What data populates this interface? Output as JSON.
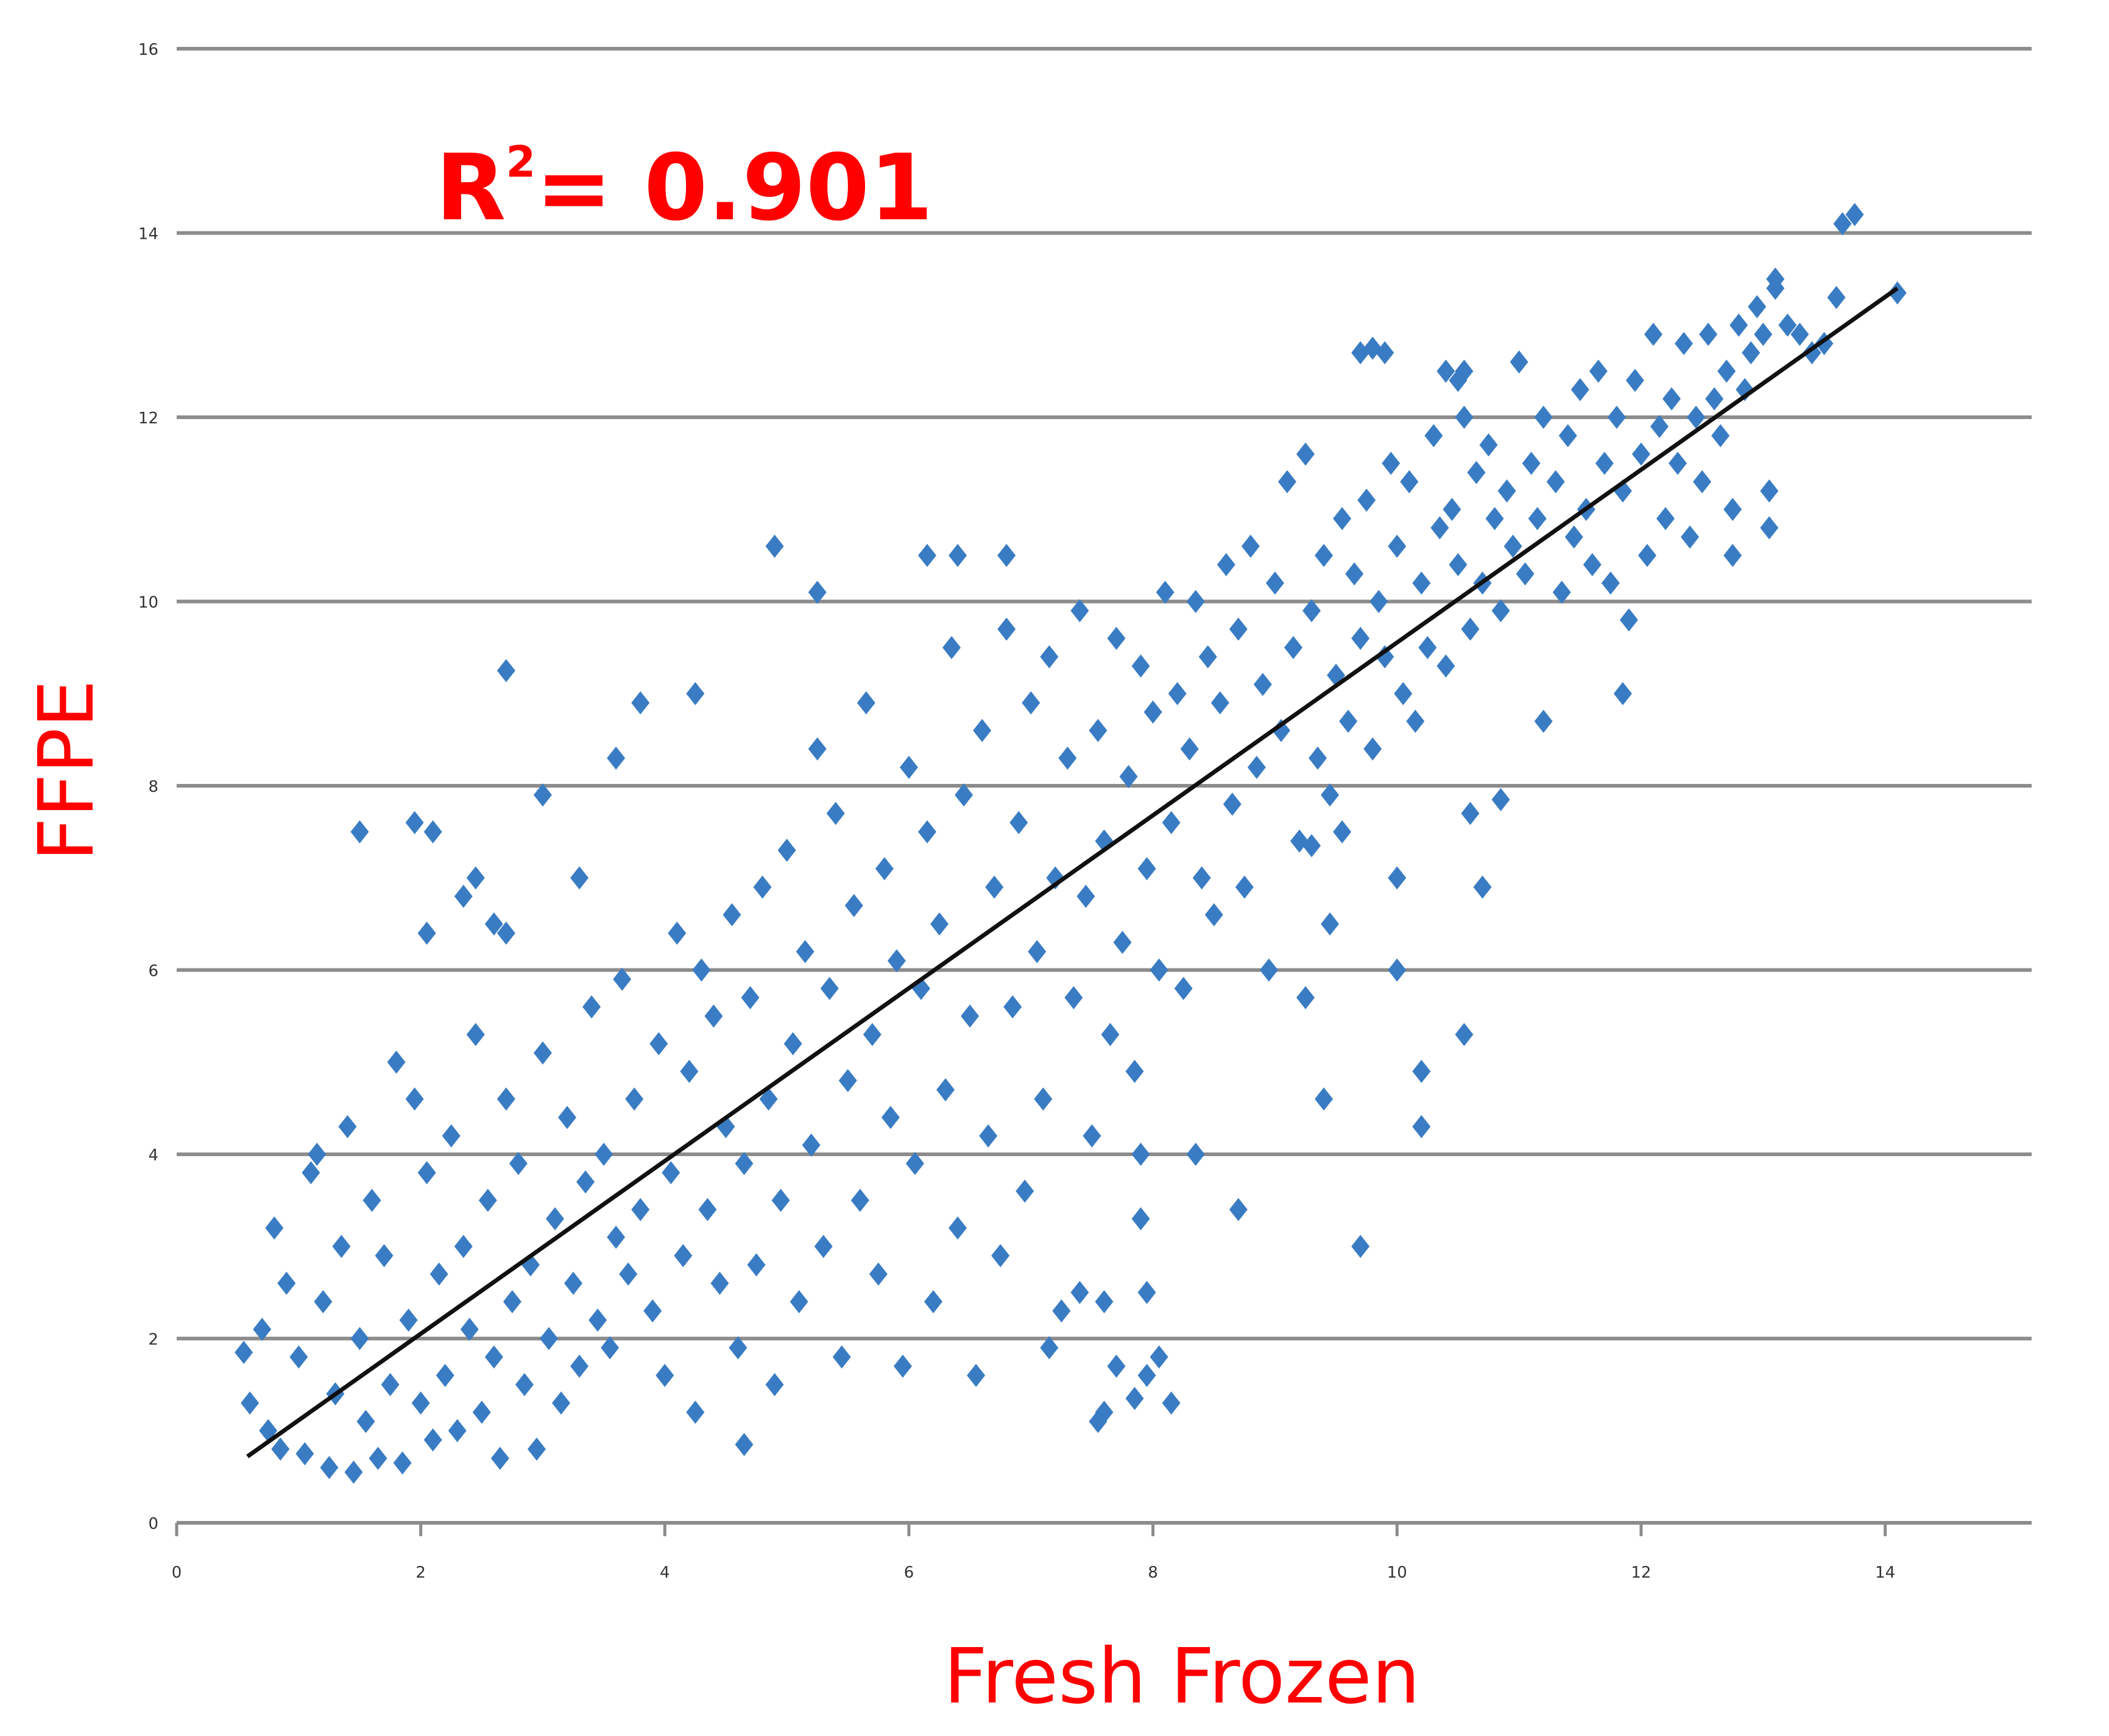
{
  "chart_data": {
    "type": "scatter",
    "xlabel": "Fresh Frozen",
    "ylabel": "FFPE",
    "annotation": {
      "base": "R",
      "sup": "2",
      "rest": "= 0.901"
    },
    "xlim": [
      0,
      15.2
    ],
    "ylim": [
      0,
      16
    ],
    "x_ticks": [
      "0",
      "2",
      "4",
      "6",
      "8",
      "10",
      "12",
      "14"
    ],
    "y_ticks": [
      "0",
      "2",
      "4",
      "6",
      "8",
      "10",
      "12",
      "14",
      "16"
    ],
    "grid": "horizontal",
    "colors": {
      "points": "#3a7cc3",
      "trendline": "#111111",
      "grid": "#8c8c8c",
      "labels": "#ff0000"
    },
    "trendline": {
      "x": [
        0.58,
        14.1
      ],
      "y": [
        0.72,
        13.4
      ]
    },
    "series": [
      {
        "marker": "diamond",
        "points": [
          [
            4.9,
            10.6
          ],
          [
            5.25,
            10.1
          ],
          [
            6.15,
            10.5
          ],
          [
            6.4,
            10.5
          ],
          [
            6.8,
            10.5
          ],
          [
            2.7,
            9.25
          ],
          [
            3.8,
            8.9
          ],
          [
            4.25,
            9.0
          ],
          [
            1.5,
            7.5
          ],
          [
            1.95,
            7.6
          ],
          [
            2.1,
            7.5
          ],
          [
            2.05,
            6.4
          ],
          [
            2.35,
            6.8
          ],
          [
            2.45,
            7.0
          ],
          [
            2.6,
            6.5
          ],
          [
            2.7,
            6.4
          ],
          [
            3.0,
            7.9
          ],
          [
            3.3,
            7.0
          ],
          [
            3.6,
            8.3
          ],
          [
            7.6,
            1.2
          ],
          [
            7.7,
            1.7
          ],
          [
            7.85,
            1.35
          ],
          [
            7.95,
            1.6
          ],
          [
            8.05,
            1.8
          ],
          [
            8.15,
            1.3
          ],
          [
            7.55,
            1.1
          ],
          [
            7.4,
            2.5
          ],
          [
            7.6,
            2.4
          ],
          [
            7.95,
            2.5
          ],
          [
            7.15,
            1.9
          ],
          [
            8.7,
            3.4
          ],
          [
            9.7,
            3.0
          ],
          [
            10.2,
            4.3
          ],
          [
            10.2,
            4.9
          ],
          [
            10.55,
            5.3
          ],
          [
            9.4,
            4.6
          ],
          [
            8.35,
            4.0
          ],
          [
            7.9,
            3.3
          ],
          [
            7.9,
            4.0
          ],
          [
            4.65,
            0.85
          ],
          [
            9.7,
            12.7
          ],
          [
            9.8,
            12.75
          ],
          [
            9.9,
            12.7
          ],
          [
            10.4,
            12.5
          ],
          [
            10.5,
            12.4
          ],
          [
            10.55,
            12.5
          ],
          [
            13.65,
            14.1
          ],
          [
            13.75,
            14.2
          ],
          [
            14.1,
            13.35
          ],
          [
            13.6,
            13.3
          ],
          [
            13.1,
            13.5
          ],
          [
            13.05,
            10.8
          ],
          [
            12.75,
            10.5
          ],
          [
            11.85,
            9.0
          ],
          [
            11.2,
            8.7
          ],
          [
            10.6,
            7.7
          ],
          [
            10.85,
            7.85
          ],
          [
            10.7,
            6.9
          ],
          [
            10.0,
            7.0
          ],
          [
            9.55,
            7.5
          ],
          [
            10.0,
            6.0
          ],
          [
            9.25,
            5.7
          ],
          [
            9.45,
            6.5
          ],
          [
            9.3,
            7.35
          ],
          [
            0.55,
            1.85
          ],
          [
            0.6,
            1.3
          ],
          [
            0.7,
            2.1
          ],
          [
            0.75,
            1.0
          ],
          [
            0.8,
            3.2
          ],
          [
            0.85,
            0.8
          ],
          [
            0.9,
            2.6
          ],
          [
            1.0,
            1.8
          ],
          [
            1.05,
            0.75
          ],
          [
            1.1,
            3.8
          ],
          [
            1.15,
            4.0
          ],
          [
            1.2,
            2.4
          ],
          [
            1.25,
            0.6
          ],
          [
            1.3,
            1.4
          ],
          [
            1.35,
            3.0
          ],
          [
            1.4,
            4.3
          ],
          [
            1.45,
            0.55
          ],
          [
            1.5,
            2.0
          ],
          [
            1.55,
            1.1
          ],
          [
            1.6,
            3.5
          ],
          [
            1.65,
            0.7
          ],
          [
            1.7,
            2.9
          ],
          [
            1.75,
            1.5
          ],
          [
            1.8,
            5.0
          ],
          [
            1.85,
            0.65
          ],
          [
            1.9,
            2.2
          ],
          [
            1.95,
            4.6
          ],
          [
            2.0,
            1.3
          ],
          [
            2.05,
            3.8
          ],
          [
            2.1,
            0.9
          ],
          [
            2.15,
            2.7
          ],
          [
            2.2,
            1.6
          ],
          [
            2.25,
            4.2
          ],
          [
            2.3,
            1.0
          ],
          [
            2.35,
            3.0
          ],
          [
            2.4,
            2.1
          ],
          [
            2.45,
            5.3
          ],
          [
            2.5,
            1.2
          ],
          [
            2.55,
            3.5
          ],
          [
            2.6,
            1.8
          ],
          [
            2.65,
            0.7
          ],
          [
            2.7,
            4.6
          ],
          [
            2.75,
            2.4
          ],
          [
            2.8,
            3.9
          ],
          [
            2.85,
            1.5
          ],
          [
            2.9,
            2.8
          ],
          [
            2.95,
            0.8
          ],
          [
            3.0,
            5.1
          ],
          [
            3.05,
            2.0
          ],
          [
            3.1,
            3.3
          ],
          [
            3.15,
            1.3
          ],
          [
            3.2,
            4.4
          ],
          [
            3.25,
            2.6
          ],
          [
            3.3,
            1.7
          ],
          [
            3.35,
            3.7
          ],
          [
            3.4,
            5.6
          ],
          [
            3.45,
            2.2
          ],
          [
            3.5,
            4.0
          ],
          [
            3.55,
            1.9
          ],
          [
            3.6,
            3.1
          ],
          [
            3.65,
            5.9
          ],
          [
            3.7,
            2.7
          ],
          [
            3.75,
            4.6
          ],
          [
            3.8,
            3.4
          ],
          [
            3.9,
            2.3
          ],
          [
            3.95,
            5.2
          ],
          [
            4.0,
            1.6
          ],
          [
            4.05,
            3.8
          ],
          [
            4.1,
            6.4
          ],
          [
            4.15,
            2.9
          ],
          [
            4.2,
            4.9
          ],
          [
            4.25,
            1.2
          ],
          [
            4.3,
            6.0
          ],
          [
            4.35,
            3.4
          ],
          [
            4.4,
            5.5
          ],
          [
            4.45,
            2.6
          ],
          [
            4.5,
            4.3
          ],
          [
            4.55,
            6.6
          ],
          [
            4.6,
            1.9
          ],
          [
            4.65,
            3.9
          ],
          [
            4.7,
            5.7
          ],
          [
            4.75,
            2.8
          ],
          [
            4.8,
            6.9
          ],
          [
            4.85,
            4.6
          ],
          [
            4.9,
            1.5
          ],
          [
            4.95,
            3.5
          ],
          [
            5.0,
            7.3
          ],
          [
            5.05,
            5.2
          ],
          [
            5.1,
            2.4
          ],
          [
            5.15,
            6.2
          ],
          [
            5.2,
            4.1
          ],
          [
            5.25,
            8.4
          ],
          [
            5.3,
            3.0
          ],
          [
            5.35,
            5.8
          ],
          [
            5.4,
            7.7
          ],
          [
            5.45,
            1.8
          ],
          [
            5.5,
            4.8
          ],
          [
            5.55,
            6.7
          ],
          [
            5.6,
            3.5
          ],
          [
            5.65,
            8.9
          ],
          [
            5.7,
            5.3
          ],
          [
            5.75,
            2.7
          ],
          [
            5.8,
            7.1
          ],
          [
            5.85,
            4.4
          ],
          [
            5.9,
            6.1
          ],
          [
            5.95,
            1.7
          ],
          [
            6.0,
            8.2
          ],
          [
            6.05,
            3.9
          ],
          [
            6.1,
            5.8
          ],
          [
            6.15,
            7.5
          ],
          [
            6.2,
            2.4
          ],
          [
            6.25,
            6.5
          ],
          [
            6.3,
            4.7
          ],
          [
            6.35,
            9.5
          ],
          [
            6.4,
            3.2
          ],
          [
            6.45,
            7.9
          ],
          [
            6.5,
            5.5
          ],
          [
            6.55,
            1.6
          ],
          [
            6.6,
            8.6
          ],
          [
            6.65,
            4.2
          ],
          [
            6.7,
            6.9
          ],
          [
            6.75,
            2.9
          ],
          [
            6.8,
            9.7
          ],
          [
            6.85,
            5.6
          ],
          [
            6.9,
            7.6
          ],
          [
            6.95,
            3.6
          ],
          [
            7.0,
            8.9
          ],
          [
            7.05,
            6.2
          ],
          [
            7.1,
            4.6
          ],
          [
            7.15,
            9.4
          ],
          [
            7.2,
            7.0
          ],
          [
            7.25,
            2.3
          ],
          [
            7.3,
            8.3
          ],
          [
            7.35,
            5.7
          ],
          [
            7.4,
            9.9
          ],
          [
            7.45,
            6.8
          ],
          [
            7.5,
            4.2
          ],
          [
            7.55,
            8.6
          ],
          [
            7.6,
            7.4
          ],
          [
            7.65,
            5.3
          ],
          [
            7.7,
            9.6
          ],
          [
            7.75,
            6.3
          ],
          [
            7.8,
            8.1
          ],
          [
            7.85,
            4.9
          ],
          [
            7.9,
            9.3
          ],
          [
            7.95,
            7.1
          ],
          [
            8.0,
            8.8
          ],
          [
            8.05,
            6.0
          ],
          [
            8.1,
            10.1
          ],
          [
            8.15,
            7.6
          ],
          [
            8.2,
            9.0
          ],
          [
            8.25,
            5.8
          ],
          [
            8.3,
            8.4
          ],
          [
            8.35,
            10.0
          ],
          [
            8.4,
            7.0
          ],
          [
            8.45,
            9.4
          ],
          [
            8.5,
            6.6
          ],
          [
            8.55,
            8.9
          ],
          [
            8.6,
            10.4
          ],
          [
            8.65,
            7.8
          ],
          [
            8.7,
            9.7
          ],
          [
            8.75,
            6.9
          ],
          [
            8.8,
            10.6
          ],
          [
            8.85,
            8.2
          ],
          [
            8.9,
            9.1
          ],
          [
            8.95,
            6.0
          ],
          [
            9.0,
            10.2
          ],
          [
            9.05,
            8.6
          ],
          [
            9.1,
            11.3
          ],
          [
            9.15,
            9.5
          ],
          [
            9.2,
            7.4
          ],
          [
            9.25,
            11.6
          ],
          [
            9.3,
            9.9
          ],
          [
            9.35,
            8.3
          ],
          [
            9.4,
            10.5
          ],
          [
            9.45,
            7.9
          ],
          [
            9.5,
            9.2
          ],
          [
            9.55,
            10.9
          ],
          [
            9.6,
            8.7
          ],
          [
            9.65,
            10.3
          ],
          [
            9.7,
            9.6
          ],
          [
            9.75,
            11.1
          ],
          [
            9.8,
            8.4
          ],
          [
            9.85,
            10.0
          ],
          [
            9.9,
            9.4
          ],
          [
            9.95,
            11.5
          ],
          [
            10.0,
            10.6
          ],
          [
            10.05,
            9.0
          ],
          [
            10.1,
            11.3
          ],
          [
            10.15,
            8.7
          ],
          [
            10.2,
            10.2
          ],
          [
            10.25,
            9.5
          ],
          [
            10.3,
            11.8
          ],
          [
            10.35,
            10.8
          ],
          [
            10.4,
            9.3
          ],
          [
            10.45,
            11.0
          ],
          [
            10.5,
            10.4
          ],
          [
            10.55,
            12.0
          ],
          [
            10.6,
            9.7
          ],
          [
            10.65,
            11.4
          ],
          [
            10.7,
            10.2
          ],
          [
            10.75,
            11.7
          ],
          [
            10.8,
            10.9
          ],
          [
            10.85,
            9.9
          ],
          [
            10.9,
            11.2
          ],
          [
            10.95,
            10.6
          ],
          [
            11.0,
            12.6
          ],
          [
            11.05,
            10.3
          ],
          [
            11.1,
            11.5
          ],
          [
            11.15,
            10.9
          ],
          [
            11.2,
            12.0
          ],
          [
            11.3,
            11.3
          ],
          [
            11.35,
            10.1
          ],
          [
            11.4,
            11.8
          ],
          [
            11.45,
            10.7
          ],
          [
            11.5,
            12.3
          ],
          [
            11.55,
            11.0
          ],
          [
            11.6,
            10.4
          ],
          [
            11.65,
            12.5
          ],
          [
            11.7,
            11.5
          ],
          [
            11.75,
            10.2
          ],
          [
            11.8,
            12.0
          ],
          [
            11.85,
            11.2
          ],
          [
            11.9,
            9.8
          ],
          [
            11.95,
            12.4
          ],
          [
            12.0,
            11.6
          ],
          [
            12.05,
            10.5
          ],
          [
            12.1,
            12.9
          ],
          [
            12.15,
            11.9
          ],
          [
            12.2,
            10.9
          ],
          [
            12.25,
            12.2
          ],
          [
            12.3,
            11.5
          ],
          [
            12.35,
            12.8
          ],
          [
            12.4,
            10.7
          ],
          [
            12.45,
            12.0
          ],
          [
            12.5,
            11.3
          ],
          [
            12.55,
            12.9
          ],
          [
            12.6,
            12.2
          ],
          [
            12.65,
            11.8
          ],
          [
            12.7,
            12.5
          ],
          [
            12.75,
            11.0
          ],
          [
            12.8,
            13.0
          ],
          [
            12.85,
            12.3
          ],
          [
            12.9,
            12.7
          ],
          [
            12.95,
            13.2
          ],
          [
            13.0,
            12.9
          ],
          [
            13.05,
            11.2
          ],
          [
            13.1,
            13.4
          ],
          [
            13.2,
            13.0
          ],
          [
            13.3,
            12.9
          ],
          [
            13.4,
            12.7
          ],
          [
            13.5,
            12.8
          ]
        ]
      }
    ]
  }
}
